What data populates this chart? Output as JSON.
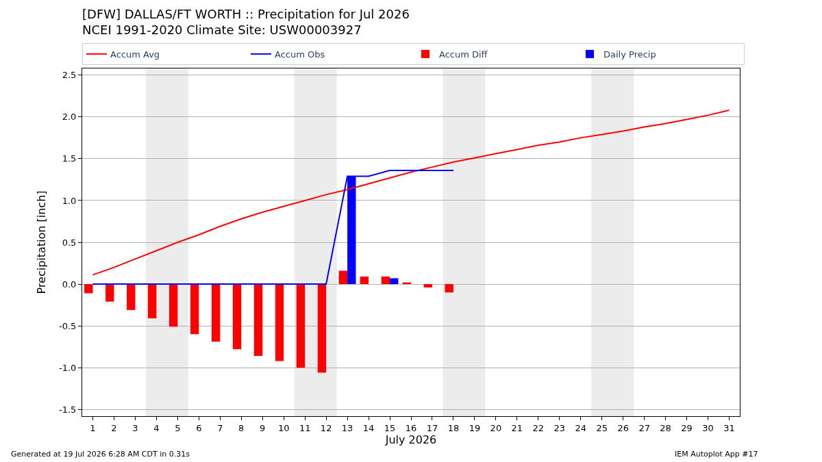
{
  "chart_data": {
    "type": "bar",
    "title": "[DFW] DALLAS/FT WORTH :: Precipitation for Jul 2026",
    "subtitle": "NCEI 1991-2020 Climate Site: USW00003927",
    "xlabel": "July 2026",
    "ylabel": "Precipitation [inch]",
    "x": [
      1,
      2,
      3,
      4,
      5,
      6,
      7,
      8,
      9,
      10,
      11,
      12,
      13,
      14,
      15,
      16,
      17,
      18,
      19,
      20,
      21,
      22,
      23,
      24,
      25,
      26,
      27,
      28,
      29,
      30,
      31
    ],
    "series": [
      {
        "name": "Accum Avg",
        "type": "line",
        "color": "#ff0000",
        "values": [
          0.11,
          0.2,
          0.3,
          0.4,
          0.5,
          0.59,
          0.69,
          0.78,
          0.86,
          0.93,
          1.0,
          1.07,
          1.13,
          1.2,
          1.27,
          1.34,
          1.4,
          1.46,
          1.51,
          1.56,
          1.61,
          1.66,
          1.7,
          1.75,
          1.79,
          1.83,
          1.88,
          1.92,
          1.97,
          2.02,
          2.08
        ]
      },
      {
        "name": "Accum Obs",
        "type": "line",
        "color": "#0000ff",
        "values": [
          0,
          0,
          0,
          0,
          0,
          0,
          0,
          0,
          0,
          0,
          0,
          0,
          1.29,
          1.29,
          1.36,
          1.36,
          1.36,
          1.36,
          null,
          null,
          null,
          null,
          null,
          null,
          null,
          null,
          null,
          null,
          null,
          null,
          null
        ]
      },
      {
        "name": "Accum Diff",
        "color": "#ff0000",
        "values": [
          -0.11,
          -0.21,
          -0.31,
          -0.41,
          -0.51,
          -0.6,
          -0.69,
          -0.78,
          -0.86,
          -0.92,
          -1.0,
          -1.06,
          0.16,
          0.09,
          0.09,
          0.02,
          -0.04,
          -0.1,
          null,
          null,
          null,
          null,
          null,
          null,
          null,
          null,
          null,
          null,
          null,
          null,
          null
        ]
      },
      {
        "name": "Daily Precip",
        "color": "#0000ff",
        "values": [
          0,
          0,
          0,
          0,
          0,
          0,
          0,
          0,
          0,
          0,
          0,
          0,
          1.29,
          0,
          0.07,
          0,
          0,
          0,
          null,
          null,
          null,
          null,
          null,
          null,
          null,
          null,
          null,
          null,
          null,
          null,
          null
        ]
      }
    ],
    "xlim": [
      0.5,
      31.5
    ],
    "xticks": [
      1,
      2,
      3,
      4,
      5,
      6,
      7,
      8,
      9,
      10,
      11,
      12,
      13,
      14,
      15,
      16,
      17,
      18,
      19,
      20,
      21,
      22,
      23,
      24,
      25,
      26,
      27,
      28,
      29,
      30,
      31
    ],
    "ylim": [
      -1.58,
      2.58
    ],
    "yticks": [
      -1.5,
      {
        "value": -1.0,
        "label": "-1.0"
      },
      -0.5,
      {
        "value": 0,
        "label": "0.0"
      },
      0.5,
      {
        "value": 1.0,
        "label": "1.0"
      },
      1.5,
      {
        "value": 2.0,
        "label": "2.0"
      },
      2.5
    ],
    "bands": [
      {
        "axis": "x",
        "from": 3.5,
        "to": 5.5,
        "color": "#ececec"
      },
      {
        "axis": "x",
        "from": 10.5,
        "to": 12.5,
        "color": "#ececec"
      },
      {
        "axis": "x",
        "from": 17.5,
        "to": 19.5,
        "color": "#ececec"
      },
      {
        "axis": "x",
        "from": 24.5,
        "to": 26.5,
        "color": "#ececec"
      }
    ],
    "grid": "y",
    "legend": "top",
    "annotations": [
      "Generated at 19 Jul 2026 6:28 AM CDT in 0.31s",
      "IEM Autoplot App #17"
    ]
  }
}
